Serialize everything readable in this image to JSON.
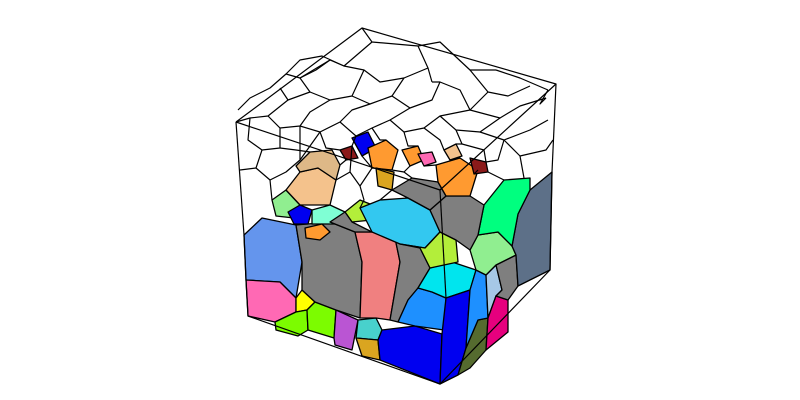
{
  "figure": {
    "description_kind": "3D Voronoi tessellation in a cube",
    "colors": {
      "background": "#ffffff",
      "edge": "#000000",
      "steel": "#5d7088",
      "gray": "#7f7f7f",
      "blue": "#0000f0",
      "royal": "#1e90ff",
      "cornflower": "#6495ed",
      "cyan": "#00e5ee",
      "skyblue": "#33c8f0",
      "aqua": "#7fffd4",
      "green": "#7cfc00",
      "spring": "#00ff7f",
      "lightgreen": "#90ee90",
      "yellow": "#ffff00",
      "yellowgreen": "#b3ee3a",
      "salmon": "#f08080",
      "pink": "#ff69b4",
      "magenta": "#e6007e",
      "orchid": "#ba55d3",
      "teal": "#48d1cc",
      "gold": "#daa520",
      "tan": "#deb887",
      "peach": "#f4c28c",
      "orange": "#ff9a30",
      "olive": "#556b2f",
      "maroon": "#8b1a1a",
      "slate": "#708090",
      "lightblue": "#a6c8e6"
    }
  }
}
